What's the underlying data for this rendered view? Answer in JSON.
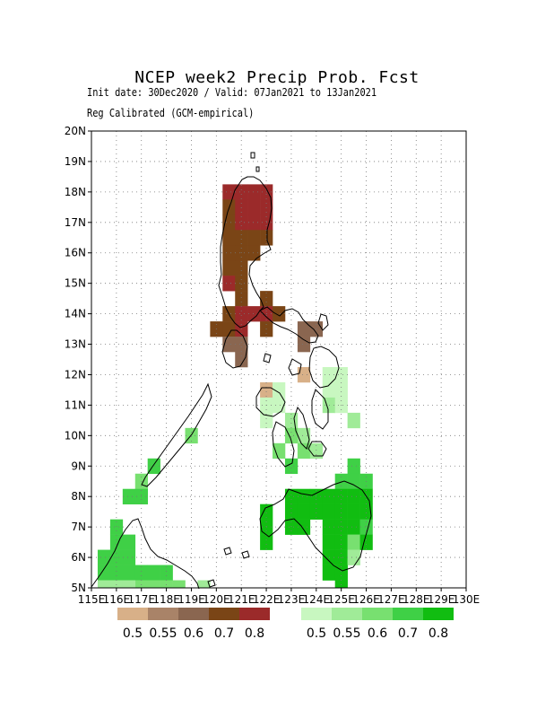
{
  "title": "NCEP week2 Precip Prob. Fcst",
  "subtitle_line1": "Init date: 30Dec2020 / Valid: 07Jan2021 to 13Jan2021",
  "subtitle_line2": "Reg Calibrated (GCM-empirical)",
  "lon_labels": [
    "115E",
    "116E",
    "117E",
    "118E",
    "119E",
    "120E",
    "121E",
    "122E",
    "123E",
    "124E",
    "125E",
    "126E",
    "127E",
    "128E",
    "129E",
    "130E"
  ],
  "lat_labels": [
    "5N",
    "6N",
    "7N",
    "8N",
    "9N",
    "10N",
    "11N",
    "12N",
    "13N",
    "14N",
    "15N",
    "16N",
    "17N",
    "18N",
    "19N",
    "20N"
  ],
  "legend_dry": {
    "colors": [
      "#d8b088",
      "#a98368",
      "#8a6650",
      "#7a4516",
      "#9b2a2a"
    ],
    "labels": [
      "0.5",
      "0.55",
      "0.6",
      "0.7",
      "0.8"
    ]
  },
  "legend_wet": {
    "colors": [
      "#c8f7c0",
      "#a0eb98",
      "#78e070",
      "#3fd046",
      "#11bd11"
    ],
    "labels": [
      "0.5",
      "0.55",
      "0.6",
      "0.7",
      "0.8"
    ]
  },
  "grid": {
    "lon_min": 115,
    "lon_max": 130,
    "lat_min": 5,
    "lat_max": 20,
    "cell_deg": 0.5
  },
  "cells": [
    {
      "lon": 121.0,
      "lat": 18.0,
      "level": "dry4"
    },
    {
      "lon": 121.5,
      "lat": 18.0,
      "level": "dry4"
    },
    {
      "lon": 122.0,
      "lat": 18.0,
      "level": "dry4"
    },
    {
      "lon": 120.5,
      "lat": 18.0,
      "level": "dry4"
    },
    {
      "lon": 120.5,
      "lat": 17.5,
      "level": "dry3"
    },
    {
      "lon": 121.0,
      "lat": 17.5,
      "level": "dry4"
    },
    {
      "lon": 121.5,
      "lat": 17.5,
      "level": "dry4"
    },
    {
      "lon": 122.0,
      "lat": 17.5,
      "level": "dry4"
    },
    {
      "lon": 120.5,
      "lat": 17.0,
      "level": "dry3"
    },
    {
      "lon": 121.0,
      "lat": 17.0,
      "level": "dry4"
    },
    {
      "lon": 121.5,
      "lat": 17.0,
      "level": "dry4"
    },
    {
      "lon": 122.0,
      "lat": 17.0,
      "level": "dry4"
    },
    {
      "lon": 120.5,
      "lat": 16.5,
      "level": "dry3"
    },
    {
      "lon": 121.0,
      "lat": 16.5,
      "level": "dry3"
    },
    {
      "lon": 121.5,
      "lat": 16.5,
      "level": "dry3"
    },
    {
      "lon": 122.0,
      "lat": 16.5,
      "level": "dry3"
    },
    {
      "lon": 120.5,
      "lat": 16.0,
      "level": "dry3"
    },
    {
      "lon": 121.0,
      "lat": 16.0,
      "level": "dry3"
    },
    {
      "lon": 121.5,
      "lat": 16.0,
      "level": "dry3"
    },
    {
      "lon": 120.5,
      "lat": 15.5,
      "level": "dry3"
    },
    {
      "lon": 121.0,
      "lat": 15.5,
      "level": "dry3"
    },
    {
      "lon": 120.5,
      "lat": 15.0,
      "level": "dry4"
    },
    {
      "lon": 121.0,
      "lat": 15.0,
      "level": "dry3"
    },
    {
      "lon": 121.0,
      "lat": 14.5,
      "level": "dry3"
    },
    {
      "lon": 122.0,
      "lat": 14.5,
      "level": "dry3"
    },
    {
      "lon": 120.5,
      "lat": 14.0,
      "level": "dry3"
    },
    {
      "lon": 121.0,
      "lat": 14.0,
      "level": "dry4"
    },
    {
      "lon": 121.5,
      "lat": 14.0,
      "level": "dry4"
    },
    {
      "lon": 122.0,
      "lat": 14.0,
      "level": "dry4"
    },
    {
      "lon": 122.5,
      "lat": 14.0,
      "level": "dry3"
    },
    {
      "lon": 120.0,
      "lat": 13.5,
      "level": "dry3"
    },
    {
      "lon": 120.5,
      "lat": 13.5,
      "level": "dry3"
    },
    {
      "lon": 121.0,
      "lat": 13.5,
      "level": "dry4"
    },
    {
      "lon": 122.0,
      "lat": 13.5,
      "level": "dry3"
    },
    {
      "lon": 120.5,
      "lat": 13.0,
      "level": "dry2"
    },
    {
      "lon": 121.0,
      "lat": 13.0,
      "level": "dry2"
    },
    {
      "lon": 121.0,
      "lat": 12.5,
      "level": "dry2"
    },
    {
      "lon": 123.5,
      "lat": 13.5,
      "level": "dry2"
    },
    {
      "lon": 124.0,
      "lat": 13.5,
      "level": "dry2"
    },
    {
      "lon": 123.5,
      "lat": 13.0,
      "level": "dry2"
    },
    {
      "lon": 123.5,
      "lat": 12.0,
      "level": "dry0"
    },
    {
      "lon": 122.0,
      "lat": 11.5,
      "level": "dry0"
    },
    {
      "lon": 124.5,
      "lat": 12.0,
      "level": "wet0"
    },
    {
      "lon": 125.0,
      "lat": 12.0,
      "level": "wet0"
    },
    {
      "lon": 124.5,
      "lat": 11.5,
      "level": "wet0"
    },
    {
      "lon": 125.0,
      "lat": 11.5,
      "level": "wet0"
    },
    {
      "lon": 124.5,
      "lat": 11.0,
      "level": "wet1"
    },
    {
      "lon": 125.0,
      "lat": 11.0,
      "level": "wet0"
    },
    {
      "lon": 125.5,
      "lat": 10.5,
      "level": "wet1"
    },
    {
      "lon": 122.0,
      "lat": 11.0,
      "level": "wet0"
    },
    {
      "lon": 122.5,
      "lat": 11.0,
      "level": "wet0"
    },
    {
      "lon": 122.5,
      "lat": 11.5,
      "level": "wet0"
    },
    {
      "lon": 122.0,
      "lat": 10.5,
      "level": "wet0"
    },
    {
      "lon": 123.0,
      "lat": 10.5,
      "level": "wet1"
    },
    {
      "lon": 123.5,
      "lat": 10.0,
      "level": "wet1"
    },
    {
      "lon": 123.0,
      "lat": 10.0,
      "level": "wet2"
    },
    {
      "lon": 122.5,
      "lat": 9.5,
      "level": "wet2"
    },
    {
      "lon": 123.5,
      "lat": 9.5,
      "level": "wet2"
    },
    {
      "lon": 123.0,
      "lat": 9.0,
      "level": "wet3"
    },
    {
      "lon": 124.0,
      "lat": 9.5,
      "level": "wet1"
    },
    {
      "lon": 125.5,
      "lat": 9.0,
      "level": "wet3"
    },
    {
      "lon": 125.0,
      "lat": 8.5,
      "level": "wet3"
    },
    {
      "lon": 125.5,
      "lat": 8.5,
      "level": "wet3"
    },
    {
      "lon": 126.0,
      "lat": 8.5,
      "level": "wet3"
    },
    {
      "lon": 123.0,
      "lat": 8.0,
      "level": "wet4"
    },
    {
      "lon": 123.5,
      "lat": 8.0,
      "level": "wet4"
    },
    {
      "lon": 124.0,
      "lat": 8.0,
      "level": "wet4"
    },
    {
      "lon": 124.5,
      "lat": 8.0,
      "level": "wet4"
    },
    {
      "lon": 125.0,
      "lat": 8.0,
      "level": "wet4"
    },
    {
      "lon": 125.5,
      "lat": 8.0,
      "level": "wet4"
    },
    {
      "lon": 126.0,
      "lat": 8.0,
      "level": "wet4"
    },
    {
      "lon": 123.0,
      "lat": 7.5,
      "level": "wet4"
    },
    {
      "lon": 123.5,
      "lat": 7.5,
      "level": "wet4"
    },
    {
      "lon": 124.0,
      "lat": 7.5,
      "level": "wet4"
    },
    {
      "lon": 124.5,
      "lat": 7.5,
      "level": "wet4"
    },
    {
      "lon": 125.0,
      "lat": 7.5,
      "level": "wet4"
    },
    {
      "lon": 125.5,
      "lat": 7.5,
      "level": "wet4"
    },
    {
      "lon": 126.0,
      "lat": 7.5,
      "level": "wet4"
    },
    {
      "lon": 122.0,
      "lat": 7.5,
      "level": "wet4"
    },
    {
      "lon": 122.0,
      "lat": 7.0,
      "level": "wet4"
    },
    {
      "lon": 122.0,
      "lat": 6.5,
      "level": "wet4"
    },
    {
      "lon": 123.0,
      "lat": 7.0,
      "level": "wet4"
    },
    {
      "lon": 123.5,
      "lat": 7.0,
      "level": "wet4"
    },
    {
      "lon": 124.5,
      "lat": 7.0,
      "level": "wet4"
    },
    {
      "lon": 125.0,
      "lat": 7.0,
      "level": "wet4"
    },
    {
      "lon": 125.5,
      "lat": 7.0,
      "level": "wet4"
    },
    {
      "lon": 126.0,
      "lat": 7.0,
      "level": "wet3"
    },
    {
      "lon": 124.5,
      "lat": 6.5,
      "level": "wet4"
    },
    {
      "lon": 125.0,
      "lat": 6.5,
      "level": "wet4"
    },
    {
      "lon": 125.5,
      "lat": 6.5,
      "level": "wet2"
    },
    {
      "lon": 126.0,
      "lat": 6.5,
      "level": "wet4"
    },
    {
      "lon": 124.5,
      "lat": 6.0,
      "level": "wet4"
    },
    {
      "lon": 125.0,
      "lat": 6.0,
      "level": "wet4"
    },
    {
      "lon": 125.5,
      "lat": 6.0,
      "level": "wet1"
    },
    {
      "lon": 124.5,
      "lat": 5.5,
      "level": "wet4"
    },
    {
      "lon": 125.0,
      "lat": 5.5,
      "level": "wet4"
    },
    {
      "lon": 125.0,
      "lat": 5.0,
      "level": "wet4"
    },
    {
      "lon": 119.0,
      "lat": 10.0,
      "level": "wet2"
    },
    {
      "lon": 117.5,
      "lat": 9.0,
      "level": "wet3"
    },
    {
      "lon": 117.0,
      "lat": 8.5,
      "level": "wet2"
    },
    {
      "lon": 116.5,
      "lat": 8.0,
      "level": "wet3"
    },
    {
      "lon": 117.0,
      "lat": 8.0,
      "level": "wet3"
    },
    {
      "lon": 116.0,
      "lat": 7.0,
      "level": "wet3"
    },
    {
      "lon": 116.0,
      "lat": 6.5,
      "level": "wet3"
    },
    {
      "lon": 116.5,
      "lat": 6.5,
      "level": "wet3"
    },
    {
      "lon": 115.5,
      "lat": 6.0,
      "level": "wet3"
    },
    {
      "lon": 116.0,
      "lat": 6.0,
      "level": "wet3"
    },
    {
      "lon": 116.5,
      "lat": 6.0,
      "level": "wet3"
    },
    {
      "lon": 115.5,
      "lat": 5.5,
      "level": "wet3"
    },
    {
      "lon": 116.0,
      "lat": 5.5,
      "level": "wet3"
    },
    {
      "lon": 116.5,
      "lat": 5.5,
      "level": "wet3"
    },
    {
      "lon": 117.0,
      "lat": 5.5,
      "level": "wet3"
    },
    {
      "lon": 117.5,
      "lat": 5.5,
      "level": "wet3"
    },
    {
      "lon": 118.0,
      "lat": 5.5,
      "level": "wet3"
    },
    {
      "lon": 117.0,
      "lat": 5.0,
      "level": "wet2"
    },
    {
      "lon": 117.5,
      "lat": 5.0,
      "level": "wet2"
    },
    {
      "lon": 118.0,
      "lat": 5.0,
      "level": "wet2"
    },
    {
      "lon": 118.5,
      "lat": 5.0,
      "level": "wet2"
    },
    {
      "lon": 115.5,
      "lat": 5.0,
      "level": "wet1"
    },
    {
      "lon": 116.0,
      "lat": 5.0,
      "level": "wet1"
    },
    {
      "lon": 116.5,
      "lat": 5.0,
      "level": "wet1"
    },
    {
      "lon": 119.5,
      "lat": 5.0,
      "level": "wet1"
    }
  ]
}
